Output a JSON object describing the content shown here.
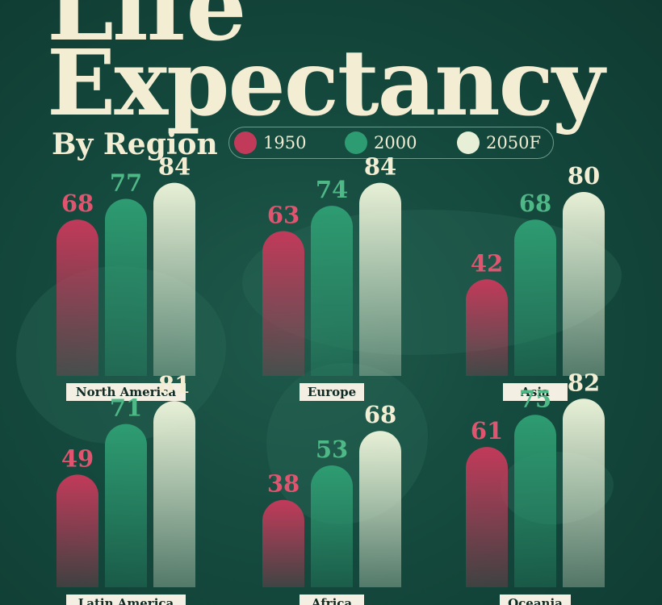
{
  "title_lines": [
    "Life",
    "Expectancy"
  ],
  "subtitle": "By Region",
  "colors": {
    "c1950": "#c23a5a",
    "c2000": "#2e9c72",
    "c2050": "#e7f0d6",
    "text1950": "#e0546f",
    "text2000": "#4fb887",
    "text2050": "#f2edd3",
    "label_bg": "#f3efe2"
  },
  "chart_data": {
    "type": "bar",
    "title": "Life Expectancy",
    "subtitle": "By Region",
    "legend": [
      {
        "name": "1950",
        "color": "#c23a5a"
      },
      {
        "name": "2000",
        "color": "#2e9c72"
      },
      {
        "name": "2050F",
        "color": "#e7f0d6"
      }
    ],
    "legend_position": "top",
    "grid": false,
    "categories": [
      "North America",
      "Europe",
      "Asia",
      "Latin America",
      "Africa",
      "Oceania"
    ],
    "series": [
      {
        "name": "1950",
        "values": [
          68,
          63,
          42,
          49,
          38,
          61
        ]
      },
      {
        "name": "2000",
        "values": [
          77,
          74,
          68,
          71,
          53,
          75
        ]
      },
      {
        "name": "2050F",
        "values": [
          84,
          84,
          80,
          81,
          68,
          82
        ]
      }
    ]
  }
}
